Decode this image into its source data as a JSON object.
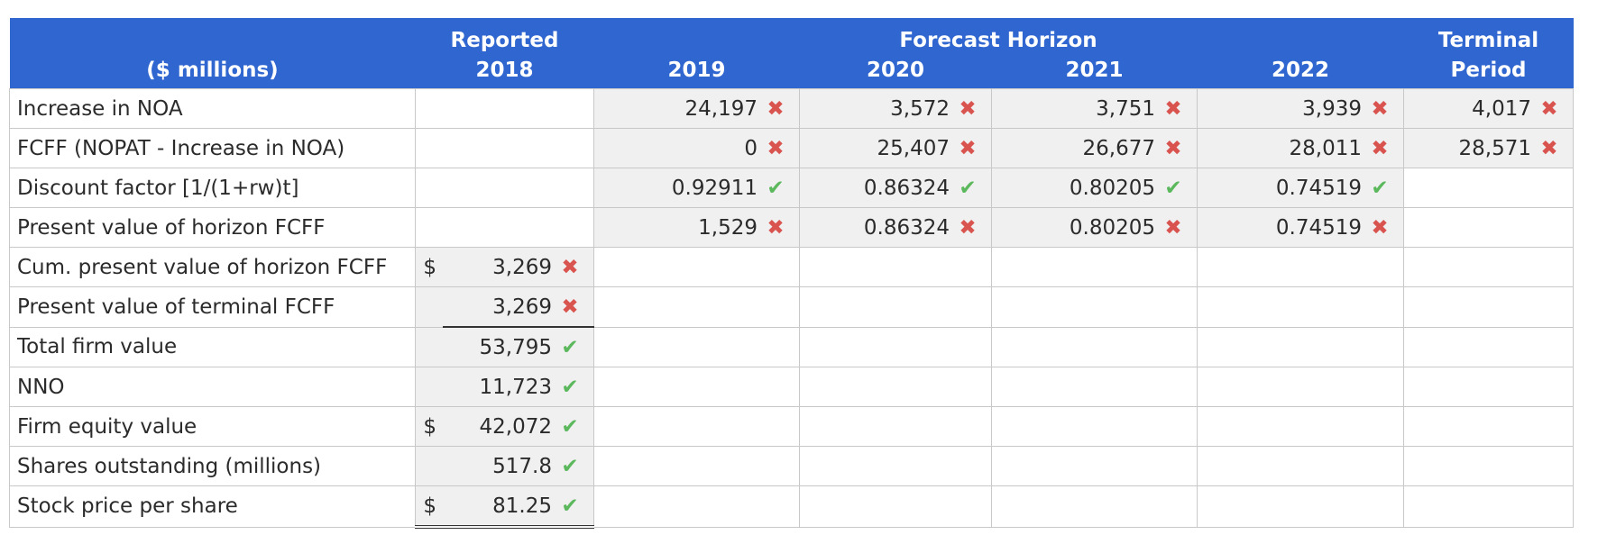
{
  "header": {
    "units_label": "($ millions)",
    "reported_top": "Reported",
    "reported_year": "2018",
    "forecast_group": "Forecast Horizon",
    "years": [
      "2019",
      "2020",
      "2021",
      "2022"
    ],
    "terminal_top": "Terminal",
    "terminal_bottom": "Period"
  },
  "rows": [
    {
      "label": "Increase in NOA",
      "dollar": "",
      "reported": "",
      "reported_mark": "",
      "forecast": [
        {
          "v": "24,197",
          "m": "✖"
        },
        {
          "v": "3,572",
          "m": "✖"
        },
        {
          "v": "3,751",
          "m": "✖"
        },
        {
          "v": "3,939",
          "m": "✖"
        }
      ],
      "terminal": {
        "v": "4,017",
        "m": "✖"
      }
    },
    {
      "label": "FCFF (NOPAT - Increase in NOA)",
      "dollar": "",
      "reported": "",
      "reported_mark": "",
      "forecast": [
        {
          "v": "0",
          "m": "✖"
        },
        {
          "v": "25,407",
          "m": "✖"
        },
        {
          "v": "26,677",
          "m": "✖"
        },
        {
          "v": "28,011",
          "m": "✖"
        }
      ],
      "terminal": {
        "v": "28,571",
        "m": "✖"
      }
    },
    {
      "label": "Discount factor [1/(1+rw)t]",
      "dollar": "",
      "reported": "",
      "reported_mark": "",
      "forecast": [
        {
          "v": "0.92911",
          "m": "✔"
        },
        {
          "v": "0.86324",
          "m": "✔"
        },
        {
          "v": "0.80205",
          "m": "✔"
        },
        {
          "v": "0.74519",
          "m": "✔"
        }
      ],
      "terminal": {
        "v": "",
        "m": ""
      }
    },
    {
      "label": "Present value of horizon FCFF",
      "dollar": "",
      "reported": "",
      "reported_mark": "",
      "forecast": [
        {
          "v": "1,529",
          "m": "✖"
        },
        {
          "v": "0.86324",
          "m": "✖"
        },
        {
          "v": "0.80205",
          "m": "✖"
        },
        {
          "v": "0.74519",
          "m": "✖"
        }
      ],
      "terminal": {
        "v": "",
        "m": ""
      }
    },
    {
      "label": "Cum. present value of horizon FCFF",
      "dollar": "$",
      "reported": "3,269",
      "reported_mark": "✖"
    },
    {
      "label": "Present value of terminal FCFF",
      "dollar": "",
      "reported": "3,269",
      "reported_mark": "✖"
    },
    {
      "label": "Total firm value",
      "dollar": "",
      "reported": "53,795",
      "reported_mark": "✔"
    },
    {
      "label": "NNO",
      "dollar": "",
      "reported": "11,723",
      "reported_mark": "✔"
    },
    {
      "label": "Firm equity value",
      "dollar": "$",
      "reported": "42,072",
      "reported_mark": "✔"
    },
    {
      "label": "Shares outstanding (millions)",
      "dollar": "",
      "reported": "517.8",
      "reported_mark": "✔"
    },
    {
      "label": "Stock price per share",
      "dollar": "$",
      "reported": "81.25",
      "reported_mark": "✔"
    }
  ],
  "colors": {
    "header_bg": "#2f66d0",
    "check": "#5cb85c",
    "cross": "#d9534f",
    "input_bg": "#f0f0f0"
  }
}
